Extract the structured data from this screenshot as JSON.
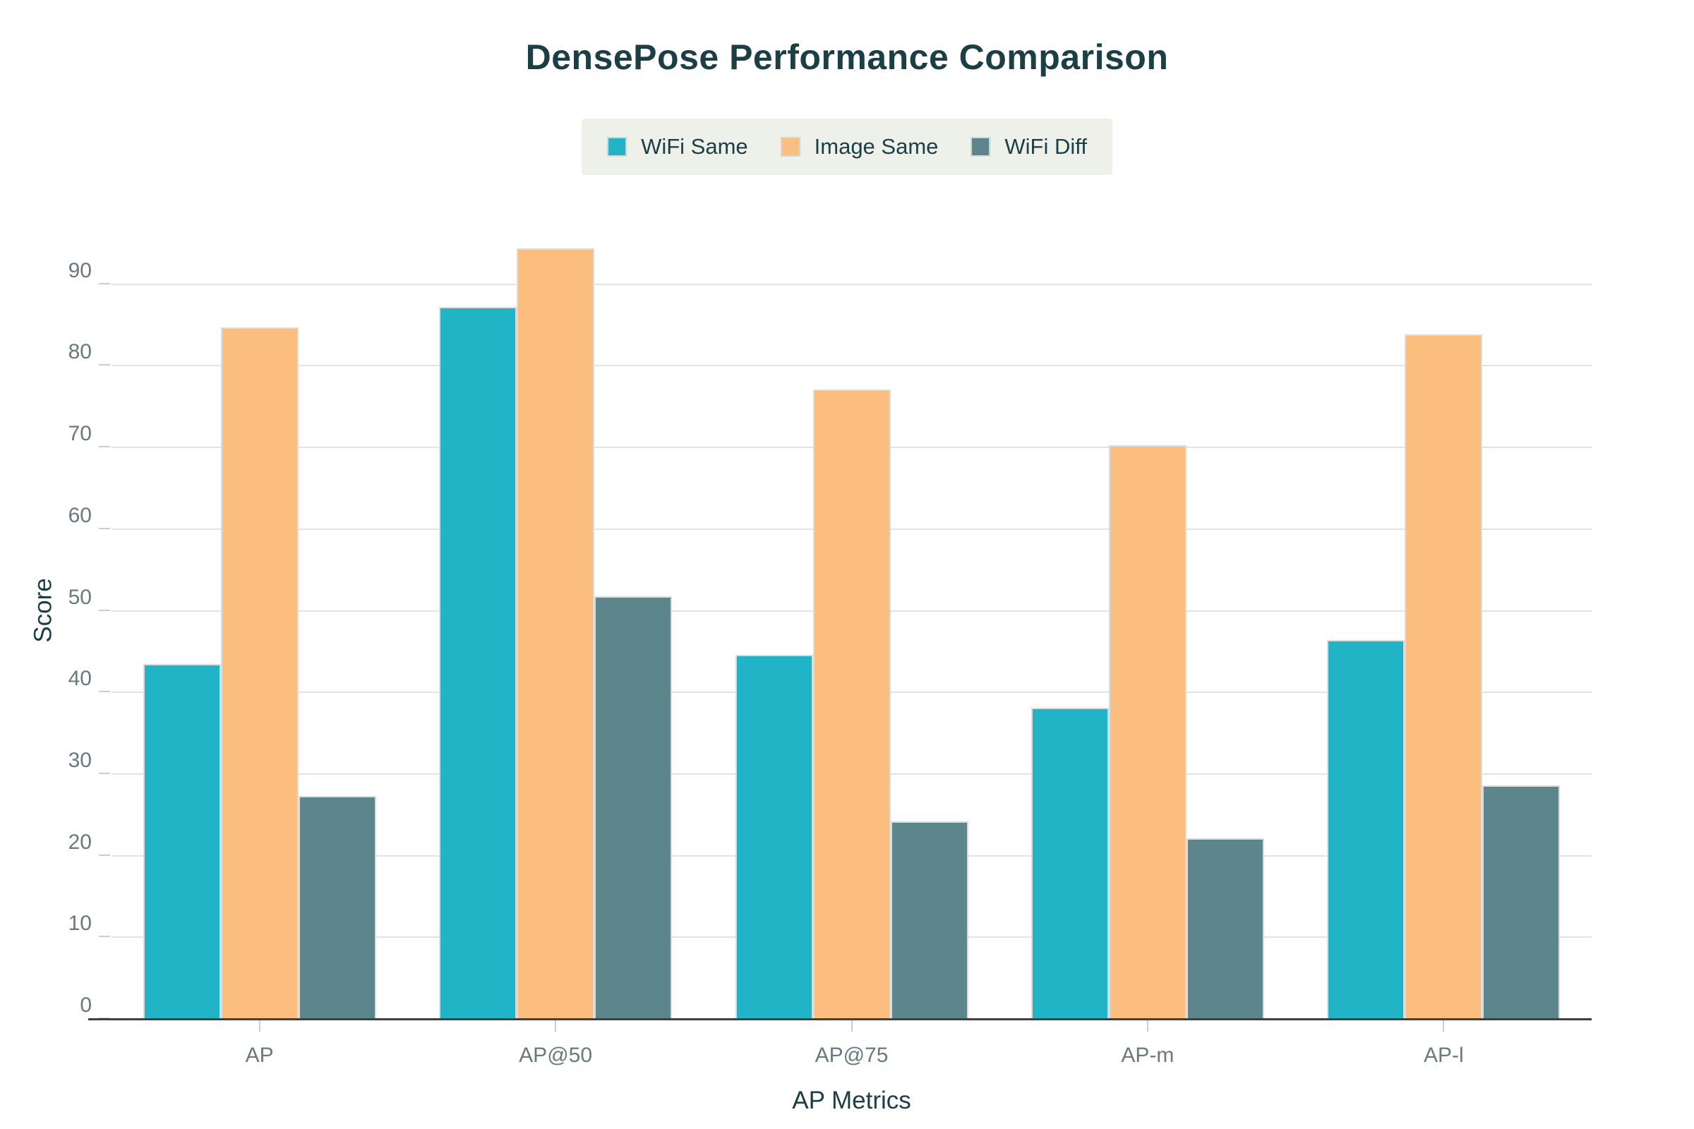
{
  "title": "DensePose Performance Comparison",
  "legend": {
    "items": [
      {
        "label": "WiFi Same",
        "color": "#21b4c7"
      },
      {
        "label": "Image Same",
        "color": "#fcbe7e"
      },
      {
        "label": "WiFi Diff",
        "color": "#5d868c"
      }
    ]
  },
  "chart_data": {
    "type": "bar",
    "title": "DensePose Performance Comparison",
    "categories": [
      "AP",
      "AP@50",
      "AP@75",
      "AP-m",
      "AP-l"
    ],
    "series": [
      {
        "name": "WiFi Same",
        "color": "#21b4c7",
        "values": [
          43.5,
          87.2,
          44.6,
          38.1,
          46.4
        ]
      },
      {
        "name": "Image Same",
        "color": "#fcbe7e",
        "values": [
          84.7,
          94.4,
          77.1,
          70.3,
          83.8
        ]
      },
      {
        "name": "WiFi Diff",
        "color": "#5d868c",
        "values": [
          27.3,
          51.8,
          24.2,
          22.1,
          28.6
        ]
      }
    ],
    "xlabel": "AP Metrics",
    "ylabel": "Score",
    "ylim": [
      0,
      100
    ],
    "yticks": [
      0,
      10,
      20,
      30,
      40,
      50,
      60,
      70,
      80,
      90
    ],
    "grid": true,
    "legend_position": "top"
  },
  "colors": {
    "title_text": "#1c3e45",
    "tick_text": "#68797f",
    "gridline": "#e3e3e3",
    "axis_line": "#3f3f3f",
    "legend_background": "#eef0ea",
    "background": "#ffffff"
  }
}
